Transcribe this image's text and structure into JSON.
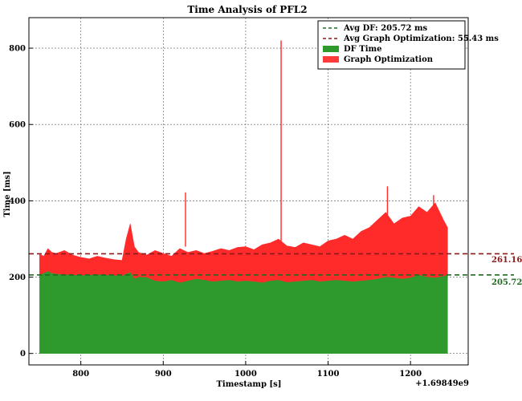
{
  "chart_data": {
    "type": "area",
    "title": "Time Analysis of PFL2",
    "xlabel": "Timestamp [s]",
    "ylabel": "Time [ms]",
    "x_offset_label": "+1.69849e9",
    "xlim": [
      737,
      1270
    ],
    "ylim": [
      -30,
      880
    ],
    "x_ticks": [
      800,
      900,
      1000,
      1100,
      1200
    ],
    "y_ticks": [
      0,
      200,
      400,
      600,
      800
    ],
    "grid": true,
    "legend_position": "top-right",
    "colors": {
      "df_fill": "#2e9a2e",
      "graph_opt_fill": "#ff2a2a",
      "avg_df_line": "#1f6b1f",
      "avg_graph_line": "#8b1a1a",
      "legend_df_patch": "#2e9a2e",
      "legend_graph_patch": "#ff3b3b"
    },
    "reference_lines": [
      {
        "name": "Avg DF: 205.72 ms",
        "value": 205.72,
        "label": "205.72",
        "color": "#1f6b1f",
        "style": "dashed"
      },
      {
        "name": "Avg Graph Optimization: 55.43 ms",
        "value": 261.16,
        "label": "261.16",
        "color": "#8b1a1a",
        "style": "dashed"
      }
    ],
    "series": [
      {
        "name": "DF Time",
        "style": "stacked-area-base",
        "x": [
          750,
          755,
          760,
          765,
          770,
          780,
          790,
          800,
          810,
          820,
          830,
          840,
          850,
          855,
          860,
          865,
          870,
          880,
          890,
          900,
          910,
          920,
          930,
          940,
          950,
          960,
          970,
          980,
          990,
          1000,
          1010,
          1020,
          1030,
          1040,
          1050,
          1060,
          1070,
          1080,
          1090,
          1100,
          1110,
          1120,
          1130,
          1140,
          1150,
          1160,
          1170,
          1180,
          1190,
          1200,
          1210,
          1220,
          1230,
          1240,
          1245
        ],
        "values": [
          205,
          210,
          215,
          210,
          208,
          206,
          205,
          204,
          205,
          206,
          205,
          204,
          203,
          208,
          212,
          195,
          200,
          199,
          190,
          188,
          192,
          185,
          190,
          195,
          192,
          188,
          190,
          192,
          188,
          190,
          188,
          185,
          190,
          192,
          186,
          188,
          190,
          192,
          188,
          190,
          192,
          190,
          188,
          190,
          192,
          195,
          200,
          198,
          195,
          198,
          205,
          200,
          198,
          202,
          205
        ]
      },
      {
        "name": "Graph Optimization",
        "style": "stacked-area-top",
        "x": [
          750,
          755,
          760,
          765,
          770,
          780,
          790,
          800,
          810,
          820,
          830,
          840,
          850,
          855,
          860,
          865,
          870,
          880,
          890,
          900,
          910,
          920,
          930,
          940,
          950,
          960,
          970,
          980,
          990,
          1000,
          1010,
          1020,
          1030,
          1040,
          1050,
          1060,
          1070,
          1080,
          1090,
          1100,
          1110,
          1120,
          1130,
          1140,
          1150,
          1160,
          1170,
          1180,
          1190,
          1200,
          1210,
          1220,
          1230,
          1240,
          1245
        ],
        "values": [
          260,
          255,
          275,
          265,
          262,
          270,
          258,
          252,
          248,
          255,
          250,
          246,
          244,
          300,
          340,
          280,
          265,
          258,
          270,
          262,
          255,
          275,
          265,
          270,
          262,
          268,
          275,
          270,
          278,
          280,
          272,
          285,
          290,
          300,
          282,
          278,
          290,
          285,
          280,
          295,
          300,
          310,
          300,
          320,
          330,
          350,
          370,
          340,
          355,
          360,
          385,
          370,
          395,
          350,
          330
        ]
      }
    ],
    "spikes": [
      {
        "x": 927,
        "value": 422
      },
      {
        "x": 1043,
        "value": 820
      },
      {
        "x": 1172,
        "value": 438
      },
      {
        "x": 1228,
        "value": 415
      }
    ]
  }
}
